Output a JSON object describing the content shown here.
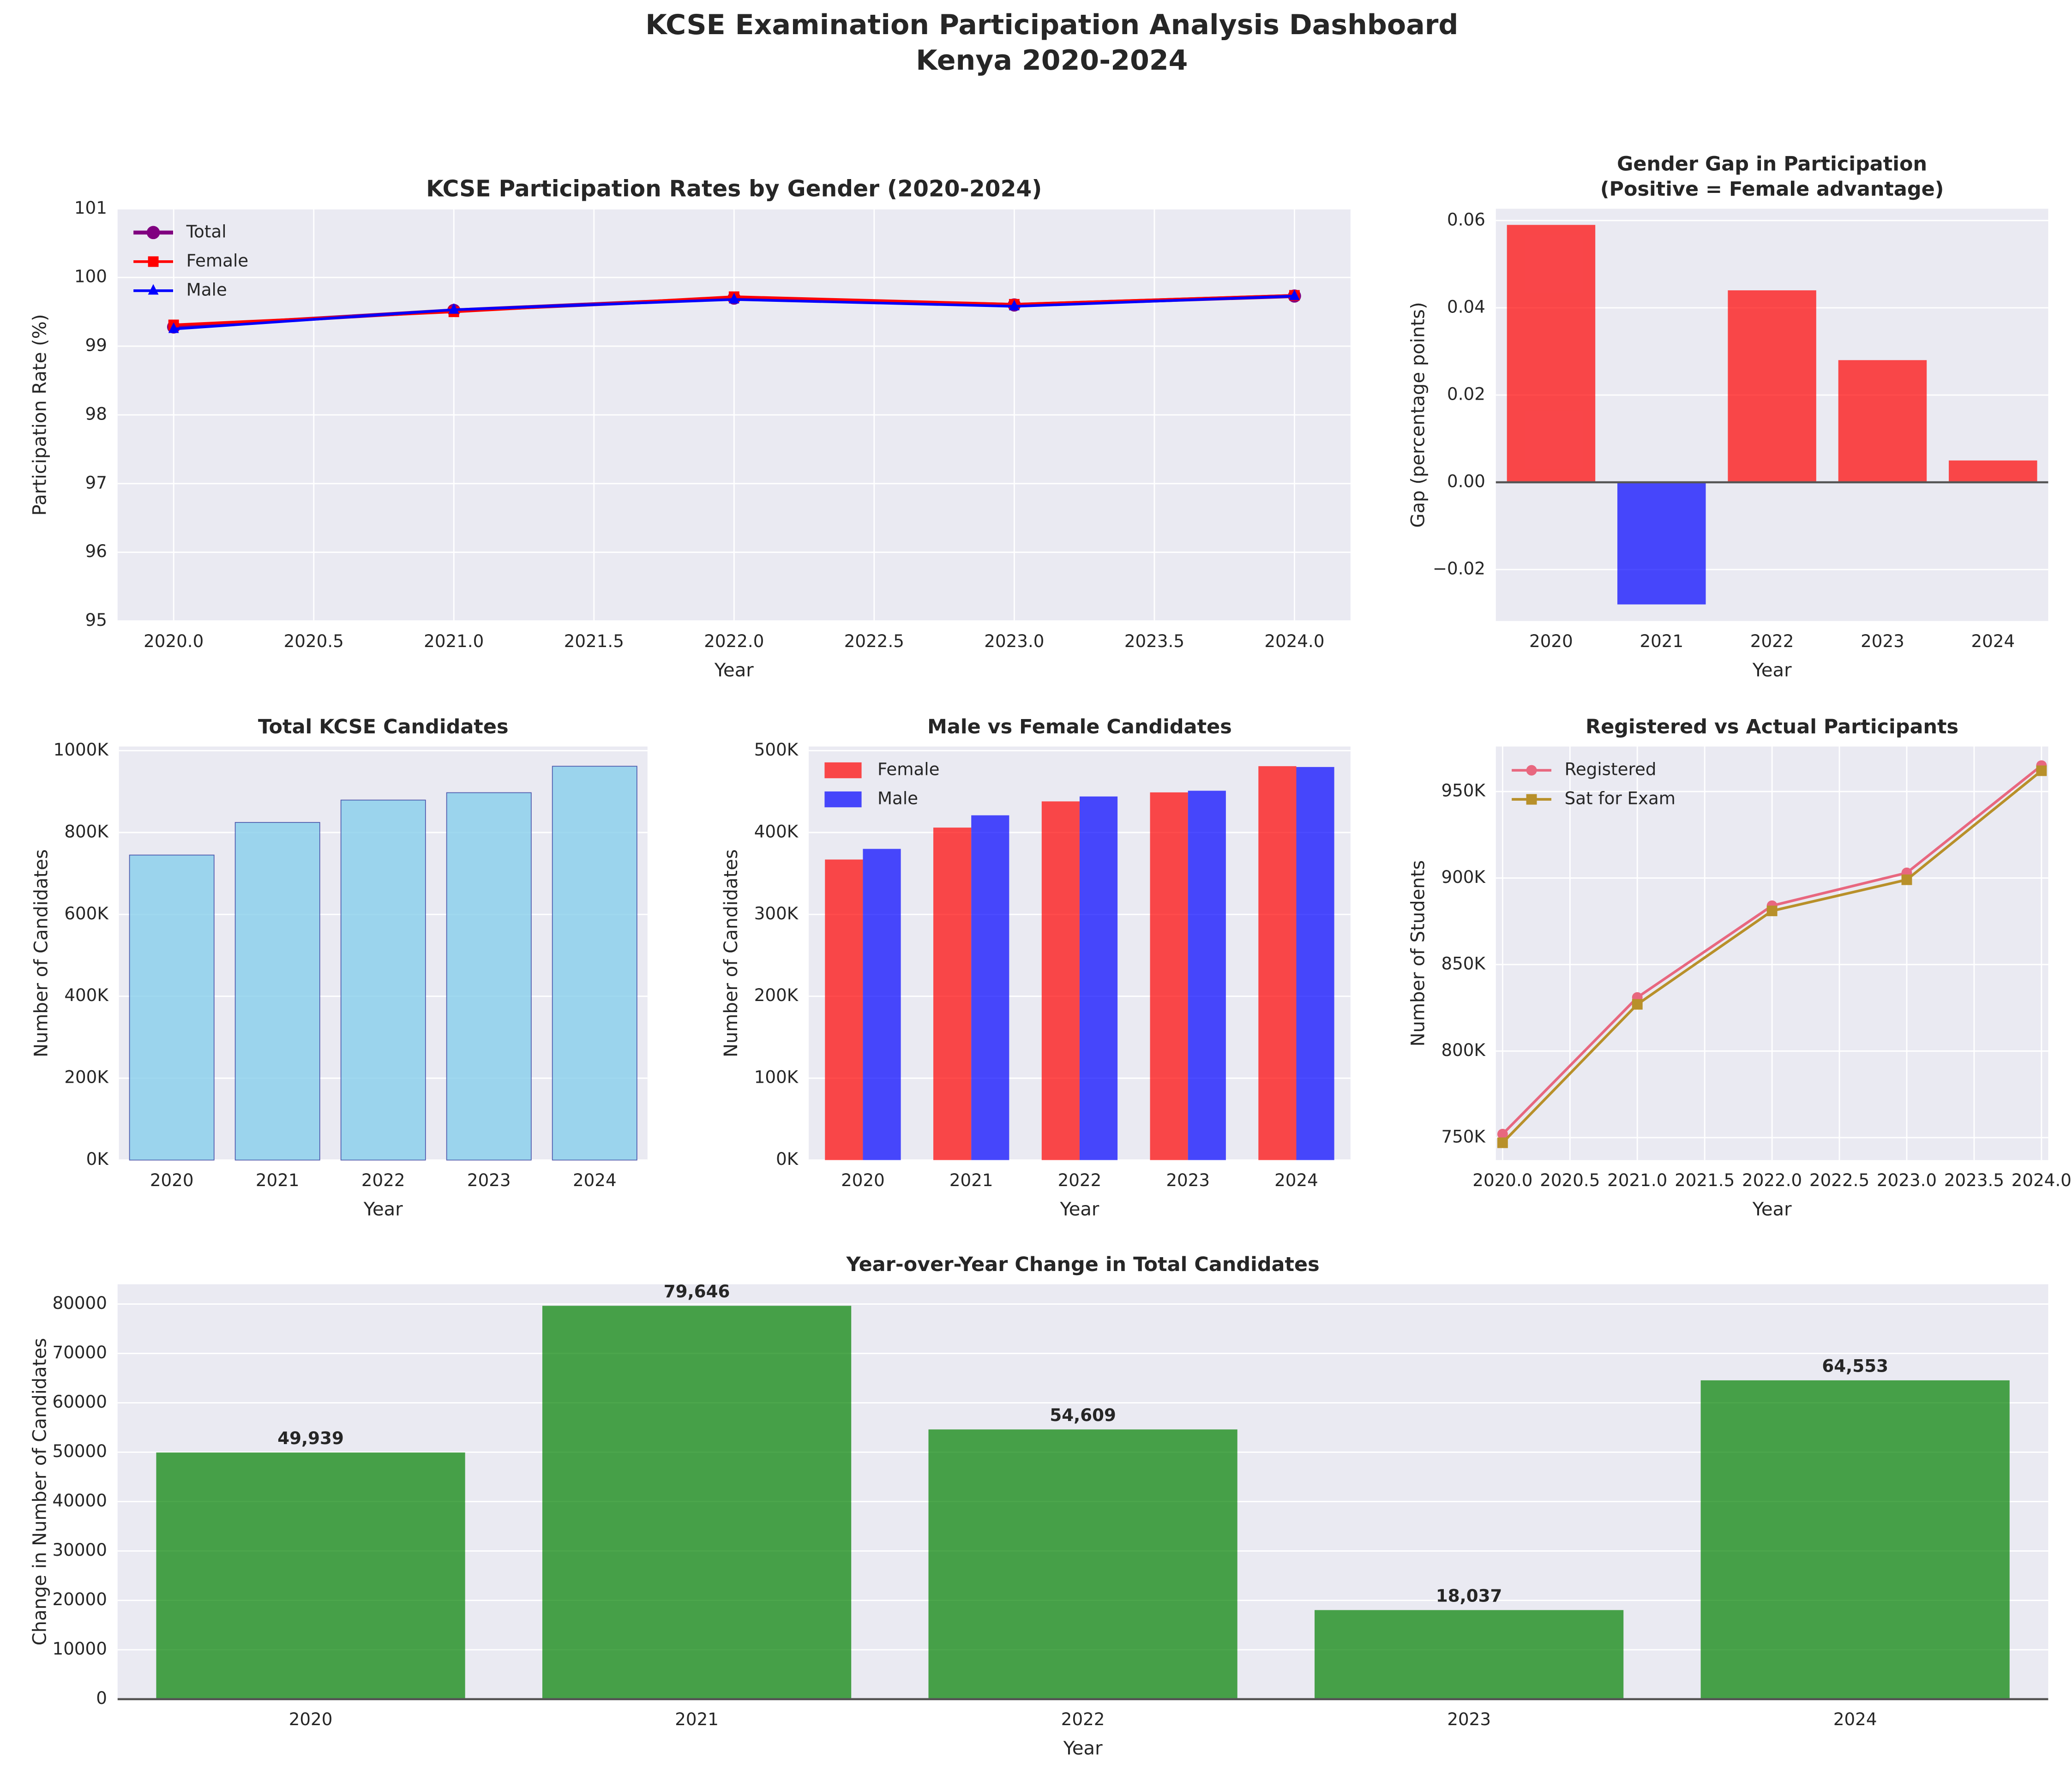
{
  "title": [
    "KCSE Examination Participation Analysis Dashboard",
    "Kenya 2020-2024"
  ],
  "chart_data": [
    {
      "type": "line",
      "title": [
        "KCSE Participation Rates by Gender (2020-2024)"
      ],
      "xlabel": "Year",
      "ylabel": "Participation Rate (%)",
      "x": [
        2020,
        2021,
        2022,
        2023,
        2024
      ],
      "series": [
        {
          "name": "Total",
          "color": "#800080",
          "marker": "circle",
          "width": 3,
          "values": [
            99.28,
            99.52,
            99.7,
            99.6,
            99.73
          ]
        },
        {
          "name": "Female",
          "color": "#ff0000",
          "marker": "square",
          "width": 2,
          "values": [
            99.31,
            99.5,
            99.72,
            99.61,
            99.74
          ]
        },
        {
          "name": "Male",
          "color": "#0000ff",
          "marker": "triangle",
          "width": 2,
          "values": [
            99.25,
            99.53,
            99.68,
            99.58,
            99.73
          ]
        }
      ],
      "xlim": [
        2019.8,
        2024.2
      ],
      "xticks": [
        {
          "value": 2020,
          "label": "2020.0"
        },
        {
          "value": 2020.5,
          "label": "2020.5"
        },
        {
          "value": 2021,
          "label": "2021.0"
        },
        {
          "value": 2021.5,
          "label": "2021.5"
        },
        {
          "value": 2022,
          "label": "2022.0"
        },
        {
          "value": 2022.5,
          "label": "2022.5"
        },
        {
          "value": 2023,
          "label": "2023.0"
        },
        {
          "value": 2023.5,
          "label": "2023.5"
        },
        {
          "value": 2024,
          "label": "2024.0"
        }
      ],
      "ylim": [
        95,
        101
      ],
      "yticks": [
        95,
        96,
        97,
        98,
        99,
        100,
        101
      ],
      "grid": true,
      "legend": "upper-left"
    },
    {
      "type": "bar",
      "title": [
        "Gender Gap in Participation",
        "(Positive = Female advantage)"
      ],
      "xlabel": "Year",
      "ylabel": "Gap (percentage points)",
      "categories": [
        "2020",
        "2021",
        "2022",
        "2023",
        "2024"
      ],
      "values": [
        0.059,
        -0.028,
        0.044,
        0.028,
        0.005
      ],
      "colors": [
        "#ff0000",
        "#0000ff",
        "#ff0000",
        "#ff0000",
        "#ff0000"
      ],
      "opacity": 0.7,
      "ylim": [
        -0.0318,
        0.0627
      ],
      "yticks": [
        {
          "value": -0.02,
          "label": "−0.02"
        },
        {
          "value": 0,
          "label": "0.00"
        },
        0.02,
        0.04,
        0.06
      ],
      "grid": true,
      "zero_line": true
    },
    {
      "type": "bar",
      "title": [
        "Total KCSE Candidates"
      ],
      "xlabel": "Year",
      "ylabel": "Number of Candidates",
      "categories": [
        "2020",
        "2021",
        "2022",
        "2023",
        "2024"
      ],
      "values": [
        745000,
        824646,
        879255,
        897292,
        961845
      ],
      "color": "#87ceeb",
      "edgecolor": "#000080",
      "opacity": 0.8,
      "ylim": [
        0,
        1010000
      ],
      "yticks": [
        {
          "value": 0,
          "label": "0K"
        },
        {
          "value": 200000,
          "label": "200K"
        },
        {
          "value": 400000,
          "label": "400K"
        },
        {
          "value": 600000,
          "label": "600K"
        },
        {
          "value": 800000,
          "label": "800K"
        },
        {
          "value": 1000000,
          "label": "1000K"
        }
      ],
      "grid": true
    },
    {
      "type": "bar",
      "title": [
        "Male vs Female Candidates"
      ],
      "xlabel": "Year",
      "ylabel": "Number of Candidates",
      "categories": [
        "2020",
        "2021",
        "2022",
        "2023",
        "2024"
      ],
      "series": [
        {
          "name": "Female",
          "color": "#ff0000",
          "values": [
            367000,
            406000,
            438000,
            449000,
            481000
          ]
        },
        {
          "name": "Male",
          "color": "#0000ff",
          "values": [
            380000,
            421000,
            444000,
            451000,
            480000
          ]
        }
      ],
      "opacity": 0.7,
      "ylim": [
        0,
        505000
      ],
      "yticks": [
        {
          "value": 0,
          "label": "0K"
        },
        {
          "value": 100000,
          "label": "100K"
        },
        {
          "value": 200000,
          "label": "200K"
        },
        {
          "value": 300000,
          "label": "300K"
        },
        {
          "value": 400000,
          "label": "400K"
        },
        {
          "value": 500000,
          "label": "500K"
        }
      ],
      "grid": true,
      "legend": "upper-left"
    },
    {
      "type": "line",
      "title": [
        "Registered vs Actual Participants"
      ],
      "xlabel": "Year",
      "ylabel": "Number of Students",
      "x": [
        2020,
        2021,
        2022,
        2023,
        2024
      ],
      "series": [
        {
          "name": "Registered",
          "color": "#e8677f",
          "marker": "circle",
          "width": 2,
          "values": [
            752000,
            831000,
            884000,
            903000,
            965000
          ]
        },
        {
          "name": "Sat for Exam",
          "color": "#b8902a",
          "marker": "square",
          "width": 2,
          "values": [
            747000,
            827000,
            881000,
            899000,
            962000
          ]
        }
      ],
      "xlim": [
        2019.95,
        2024.05
      ],
      "xticks": [
        {
          "value": 2020,
          "label": "2020.0"
        },
        {
          "value": 2020.5,
          "label": "2020.5"
        },
        {
          "value": 2021,
          "label": "2021.0"
        },
        {
          "value": 2021.5,
          "label": "2021.5"
        },
        {
          "value": 2022,
          "label": "2022.0"
        },
        {
          "value": 2022.5,
          "label": "2022.5"
        },
        {
          "value": 2023,
          "label": "2023.0"
        },
        {
          "value": 2023.5,
          "label": "2023.5"
        },
        {
          "value": 2024,
          "label": "2024.0"
        }
      ],
      "ylim": [
        737000,
        976000
      ],
      "yticks": [
        {
          "value": 750000,
          "label": "750K"
        },
        {
          "value": 800000,
          "label": "800K"
        },
        {
          "value": 850000,
          "label": "850K"
        },
        {
          "value": 900000,
          "label": "900K"
        },
        {
          "value": 950000,
          "label": "950K"
        }
      ],
      "grid": true,
      "legend": "upper-left"
    },
    {
      "type": "bar",
      "title": [
        "Year-over-Year Change in Total Candidates"
      ],
      "xlabel": "Year",
      "ylabel": "Change in Number of Candidates",
      "categories": [
        "2020",
        "2021",
        "2022",
        "2023",
        "2024"
      ],
      "values": [
        49939,
        79646,
        54609,
        18037,
        64553
      ],
      "value_labels": [
        "49,939",
        "79,646",
        "54,609",
        "18,037",
        "64,553"
      ],
      "color": "#008000",
      "opacity": 0.7,
      "ylim": [
        0,
        84000
      ],
      "yticks": [
        0,
        10000,
        20000,
        30000,
        40000,
        50000,
        60000,
        70000,
        80000
      ],
      "grid": true,
      "zero_line": true
    }
  ]
}
